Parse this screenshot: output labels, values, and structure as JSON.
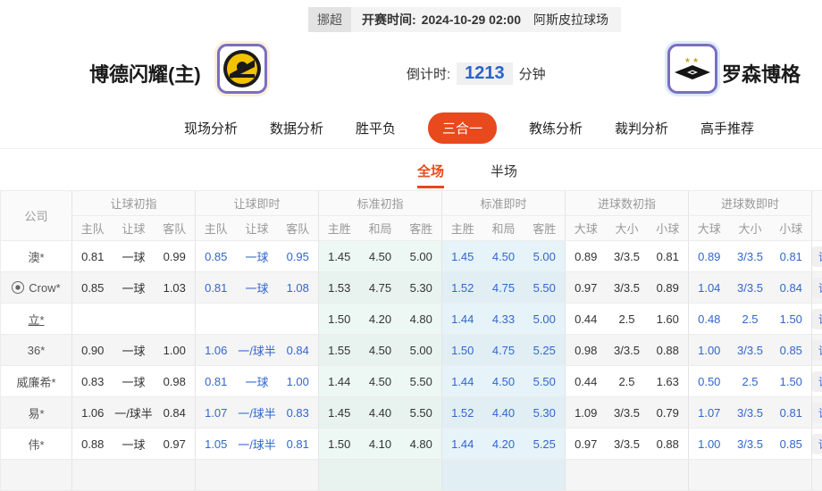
{
  "match_bar": {
    "league": "挪超",
    "kickoff_label": "开赛时间:",
    "kickoff_time": "2024-10-29 02:00",
    "venue": "阿斯皮拉球场"
  },
  "teams": {
    "home": {
      "name": "博德闪耀(主)"
    },
    "away": {
      "name": "罗森博格"
    }
  },
  "countdown": {
    "label": "倒计时:",
    "value": "1213",
    "unit": "分钟"
  },
  "nav_tabs": [
    {
      "label": "现场分析",
      "active": false
    },
    {
      "label": "数据分析",
      "active": false
    },
    {
      "label": "胜平负",
      "active": false
    },
    {
      "label": "三合一",
      "active": true
    },
    {
      "label": "教练分析",
      "active": false
    },
    {
      "label": "裁判分析",
      "active": false
    },
    {
      "label": "高手推荐",
      "active": false
    }
  ],
  "period_tabs": [
    {
      "label": "全场",
      "active": true
    },
    {
      "label": "半场",
      "active": false
    }
  ],
  "odds_table": {
    "company_header": "公司",
    "detail_label": "详情",
    "groups": [
      {
        "key": "handicap_initial",
        "label": "让球初指",
        "cols": [
          "主队",
          "让球",
          "客队"
        ],
        "style": "plain"
      },
      {
        "key": "handicap_live",
        "label": "让球即时",
        "cols": [
          "主队",
          "让球",
          "客队"
        ],
        "style": "blue"
      },
      {
        "key": "standard_initial",
        "label": "标准初指",
        "cols": [
          "主胜",
          "和局",
          "客胜"
        ],
        "style": "cyan1"
      },
      {
        "key": "standard_live",
        "label": "标准即时",
        "cols": [
          "主胜",
          "和局",
          "客胜"
        ],
        "style": "cyan2-blue"
      },
      {
        "key": "goals_initial",
        "label": "进球数初指",
        "cols": [
          "大球",
          "大小",
          "小球"
        ],
        "style": "plain"
      },
      {
        "key": "goals_live",
        "label": "进球数即时",
        "cols": [
          "大球",
          "大小",
          "小球"
        ],
        "style": "blue"
      }
    ],
    "rows": [
      {
        "company": "澳*",
        "has_icon": false,
        "underlined": false,
        "handicap_initial": [
          "0.81",
          "一球",
          "0.99"
        ],
        "handicap_live": [
          "0.85",
          "一球",
          "0.95"
        ],
        "standard_initial": [
          "1.45",
          "4.50",
          "5.00"
        ],
        "standard_live": [
          "1.45",
          "4.50",
          "5.00"
        ],
        "goals_initial": [
          "0.89",
          "3/3.5",
          "0.81"
        ],
        "goals_live": [
          "0.89",
          "3/3.5",
          "0.81"
        ]
      },
      {
        "company": "Crow*",
        "has_icon": true,
        "underlined": false,
        "handicap_initial": [
          "0.85",
          "一球",
          "1.03"
        ],
        "handicap_live": [
          "0.81",
          "一球",
          "1.08"
        ],
        "standard_initial": [
          "1.53",
          "4.75",
          "5.30"
        ],
        "standard_live": [
          "1.52",
          "4.75",
          "5.50"
        ],
        "goals_initial": [
          "0.97",
          "3/3.5",
          "0.89"
        ],
        "goals_live": [
          "1.04",
          "3/3.5",
          "0.84"
        ]
      },
      {
        "company": "立*",
        "has_icon": false,
        "underlined": true,
        "handicap_initial": [
          "",
          "",
          ""
        ],
        "handicap_live": [
          "",
          "",
          ""
        ],
        "standard_initial": [
          "1.50",
          "4.20",
          "4.80"
        ],
        "standard_live": [
          "1.44",
          "4.33",
          "5.00"
        ],
        "goals_initial": [
          "0.44",
          "2.5",
          "1.60"
        ],
        "goals_live": [
          "0.48",
          "2.5",
          "1.50"
        ]
      },
      {
        "company": "36*",
        "has_icon": false,
        "underlined": false,
        "handicap_initial": [
          "0.90",
          "一球",
          "1.00"
        ],
        "handicap_live": [
          "1.06",
          "一/球半",
          "0.84"
        ],
        "standard_initial": [
          "1.55",
          "4.50",
          "5.00"
        ],
        "standard_live": [
          "1.50",
          "4.75",
          "5.25"
        ],
        "goals_initial": [
          "0.98",
          "3/3.5",
          "0.88"
        ],
        "goals_live": [
          "1.00",
          "3/3.5",
          "0.85"
        ]
      },
      {
        "company": "威廉希*",
        "has_icon": false,
        "underlined": false,
        "handicap_initial": [
          "0.83",
          "一球",
          "0.98"
        ],
        "handicap_live": [
          "0.81",
          "一球",
          "1.00"
        ],
        "standard_initial": [
          "1.44",
          "4.50",
          "5.50"
        ],
        "standard_live": [
          "1.44",
          "4.50",
          "5.50"
        ],
        "goals_initial": [
          "0.44",
          "2.5",
          "1.63"
        ],
        "goals_live": [
          "0.50",
          "2.5",
          "1.50"
        ]
      },
      {
        "company": "易*",
        "has_icon": false,
        "underlined": false,
        "handicap_initial": [
          "1.06",
          "一/球半",
          "0.84"
        ],
        "handicap_live": [
          "1.07",
          "一/球半",
          "0.83"
        ],
        "standard_initial": [
          "1.45",
          "4.40",
          "5.50"
        ],
        "standard_live": [
          "1.52",
          "4.40",
          "5.30"
        ],
        "goals_initial": [
          "1.09",
          "3/3.5",
          "0.79"
        ],
        "goals_live": [
          "1.07",
          "3/3.5",
          "0.81"
        ]
      },
      {
        "company": "伟*",
        "has_icon": false,
        "underlined": false,
        "handicap_initial": [
          "0.88",
          "一球",
          "0.97"
        ],
        "handicap_live": [
          "1.05",
          "一/球半",
          "0.81"
        ],
        "standard_initial": [
          "1.50",
          "4.10",
          "4.80"
        ],
        "standard_live": [
          "1.44",
          "4.20",
          "5.25"
        ],
        "goals_initial": [
          "0.97",
          "3/3.5",
          "0.88"
        ],
        "goals_live": [
          "1.00",
          "3/3.5",
          "0.85"
        ]
      }
    ]
  },
  "colors": {
    "accent": "#e8491d",
    "link_blue": "#3366cc",
    "countdown_blue": "#2b63c8",
    "cyan_initial": "#edf8f5",
    "cyan_live": "#e6f3f8"
  }
}
